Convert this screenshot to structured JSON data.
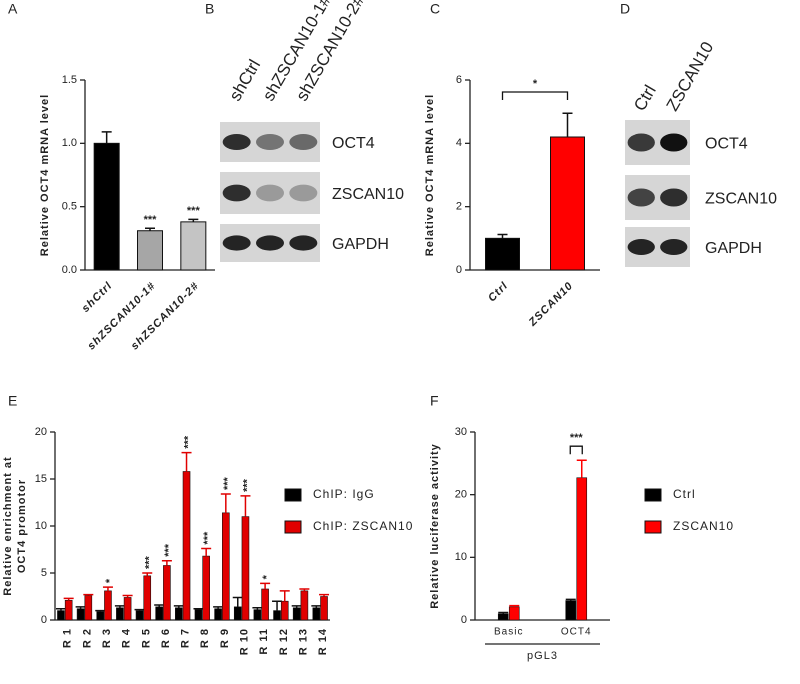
{
  "chart_data": [
    {
      "type": "bar",
      "panel": "A",
      "ylabel": [
        "Relative OCT4 mRNA level"
      ],
      "categories": [
        "shCtrl",
        "shZSCAN10-1#",
        "shZSCAN10-2#"
      ],
      "values": [
        1.0,
        0.31,
        0.38
      ],
      "errors": [
        0.09,
        0.02,
        0.02
      ],
      "colors": [
        "#000000",
        "#a6a6a6",
        "#c4c4c4"
      ],
      "significance": [
        null,
        "***",
        "***"
      ],
      "ylim": [
        0,
        1.5
      ],
      "yticks": [
        {
          "value": 0,
          "label": "0.0"
        },
        {
          "value": 0.5,
          "label": "0.5"
        },
        {
          "value": 1,
          "label": "1.0"
        },
        {
          "value": 1.5,
          "label": "1.5"
        }
      ]
    },
    {
      "type": "bar",
      "panel": "C",
      "ylabel": [
        "Relative OCT4 mRNA level"
      ],
      "categories": [
        "Ctrl",
        "ZSCAN10"
      ],
      "values": [
        1.0,
        4.2
      ],
      "errors": [
        0.12,
        0.75
      ],
      "colors": [
        "#000000",
        "#ff0000"
      ],
      "comparison": "*",
      "ylim": [
        0,
        6
      ],
      "yticks": [
        0,
        2,
        4,
        6
      ]
    },
    {
      "type": "grouped_bar",
      "panel": "E",
      "ylabel": [
        "Relative enrichment at",
        "OCT4 promotor"
      ],
      "categories": [
        "R 1",
        "R 2",
        "R 3",
        "R 4",
        "R 5",
        "R 6",
        "R 7",
        "R 8",
        "R 9",
        "R 10",
        "R 11",
        "R 12",
        "R 13",
        "R 14"
      ],
      "series": [
        {
          "name": "ChIP: IgG",
          "color": "#000000",
          "values": [
            1.0,
            1.2,
            0.9,
            1.3,
            1.0,
            1.4,
            1.3,
            1.1,
            1.2,
            1.4,
            1.1,
            1.0,
            1.3,
            1.3
          ],
          "errors": [
            0.2,
            0.2,
            0.1,
            0.2,
            0.1,
            0.2,
            0.2,
            0.1,
            0.2,
            1.0,
            0.2,
            1.0,
            0.2,
            0.2
          ]
        },
        {
          "name": "ChIP: ZSCAN10",
          "color": "#e00000",
          "values": [
            2.1,
            2.6,
            3.1,
            2.4,
            4.7,
            5.8,
            15.8,
            6.8,
            11.4,
            11.0,
            3.3,
            2.0,
            3.1,
            2.5
          ],
          "errors": [
            0.2,
            0.1,
            0.4,
            0.2,
            0.3,
            0.5,
            2.0,
            0.8,
            2.0,
            2.2,
            0.6,
            1.1,
            0.2,
            0.2
          ]
        }
      ],
      "significance": [
        null,
        null,
        "*",
        null,
        "***",
        "***",
        "***",
        "***",
        "***",
        "***",
        "*",
        null,
        null,
        null
      ],
      "legend": "right",
      "ylim": [
        0,
        20
      ],
      "yticks": [
        0,
        5,
        10,
        15,
        20
      ]
    },
    {
      "type": "grouped_bar",
      "panel": "F",
      "ylabel": [
        "Relative luciferase activity"
      ],
      "categories": [
        "Basic",
        "OCT4"
      ],
      "xlabel": "pGL3",
      "series": [
        {
          "name": "Ctrl",
          "color": "#000000",
          "values": [
            1.0,
            3.1
          ],
          "errors": [
            0.2,
            0.2
          ]
        },
        {
          "name": "ZSCAN10",
          "color": "#ff0000",
          "values": [
            2.1,
            22.7
          ],
          "errors": [
            0.2,
            2.8
          ]
        }
      ],
      "comparison": "***",
      "legend": "right",
      "ylim": [
        0,
        30
      ],
      "yticks": [
        0,
        10,
        20,
        30
      ]
    }
  ],
  "blots": [
    {
      "panel": "B",
      "lanes": [
        "shCtrl",
        "shZSCAN10-1#",
        "shZSCAN10-2#"
      ],
      "rows": [
        "OCT4",
        "ZSCAN10",
        "GAPDH"
      ]
    },
    {
      "panel": "D",
      "lanes": [
        "Ctrl",
        "ZSCAN10"
      ],
      "rows": [
        "OCT4",
        "ZSCAN10",
        "GAPDH"
      ]
    }
  ]
}
